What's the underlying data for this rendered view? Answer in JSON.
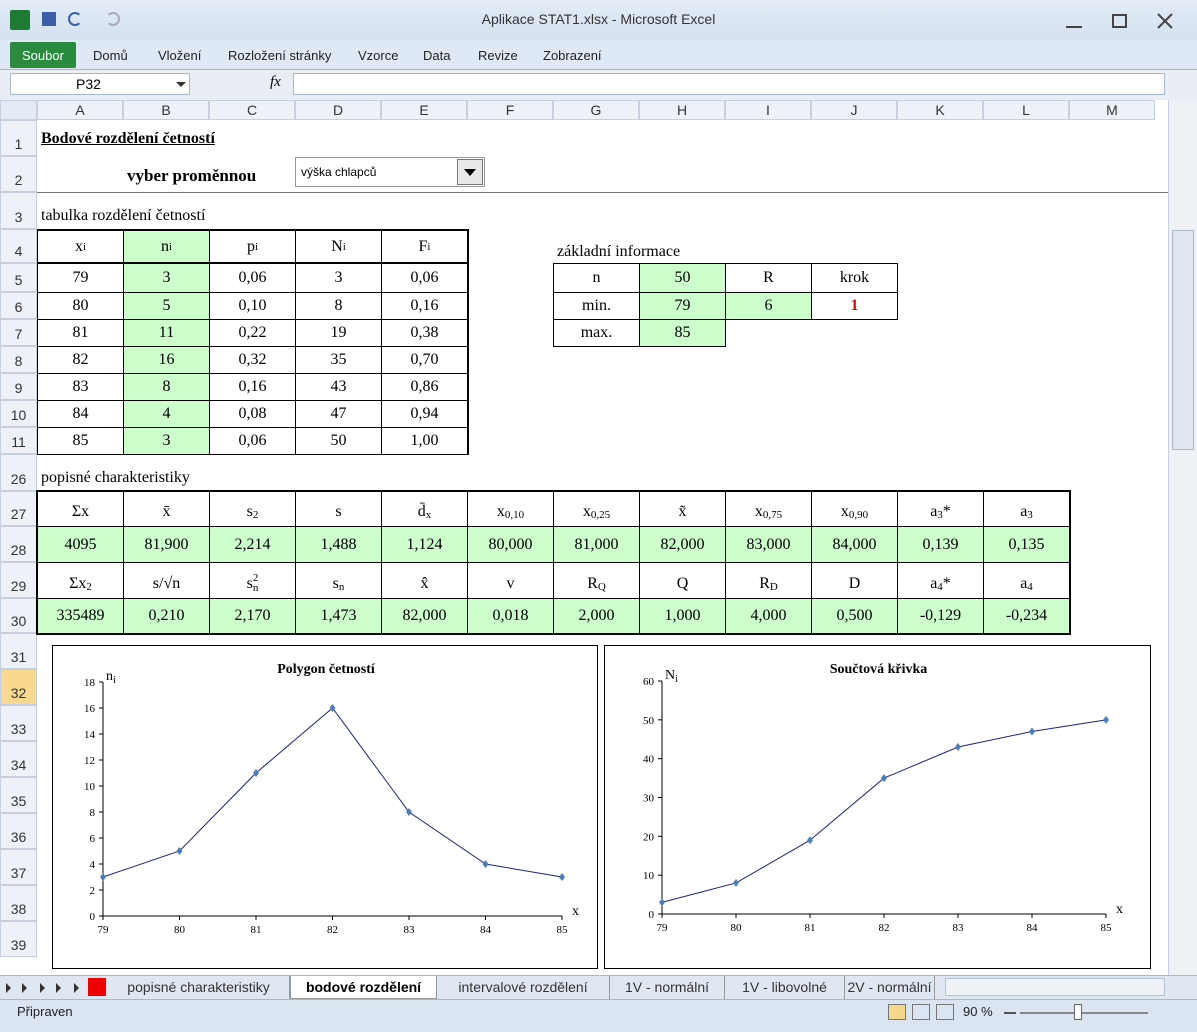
{
  "window": {
    "title": "Aplikace STAT1.xlsx - Microsoft Excel"
  },
  "ribbon": {
    "tabs": [
      "Soubor",
      "Domů",
      "Vložení",
      "Rozložení stránky",
      "Vzorce",
      "Data",
      "Revize",
      "Zobrazení"
    ]
  },
  "formula_bar": {
    "name_box": "P32",
    "fx": "fx"
  },
  "columns": [
    "A",
    "B",
    "C",
    "D",
    "E",
    "F",
    "G",
    "H",
    "I",
    "J",
    "K",
    "L",
    "M"
  ],
  "rows": [
    "1",
    "2",
    "3",
    "4",
    "5",
    "6",
    "7",
    "8",
    "9",
    "10",
    "11",
    "26",
    "27",
    "28",
    "29",
    "30",
    "31",
    "32",
    "33",
    "34",
    "35",
    "36",
    "37",
    "38",
    "39"
  ],
  "sheet": {
    "title": "Bodové rozdělení četností",
    "selector_label": "vyber proměnnou",
    "selector_value": "výška chlapců",
    "freq_table": {
      "caption": "tabulka rozdělení četností",
      "header": [
        {
          "base": "x",
          "sub": "i"
        },
        {
          "base": "n",
          "sub": "i"
        },
        {
          "base": "p",
          "sub": "i"
        },
        {
          "base": "N",
          "sub": "i"
        },
        {
          "base": "F",
          "sub": "i"
        }
      ],
      "rows": [
        [
          "79",
          "3",
          "0,06",
          "3",
          "0,06"
        ],
        [
          "80",
          "5",
          "0,10",
          "8",
          "0,16"
        ],
        [
          "81",
          "11",
          "0,22",
          "19",
          "0,38"
        ],
        [
          "82",
          "16",
          "0,32",
          "35",
          "0,70"
        ],
        [
          "83",
          "8",
          "0,16",
          "43",
          "0,86"
        ],
        [
          "84",
          "4",
          "0,08",
          "47",
          "0,94"
        ],
        [
          "85",
          "3",
          "0,06",
          "50",
          "1,00"
        ]
      ]
    },
    "info": {
      "caption": "základní informace",
      "rows": [
        [
          "n",
          "50",
          "R",
          "krok"
        ],
        [
          "min.",
          "79",
          "6",
          "1"
        ],
        [
          "max.",
          "85"
        ]
      ]
    },
    "stats": {
      "caption": "popisné charakteristiky",
      "header1": [
        {
          "base": "Σx"
        },
        {
          "base": "x̄"
        },
        {
          "base": "s",
          "sup": "2"
        },
        {
          "base": "s"
        },
        {
          "base": "d̄",
          "sub": "x"
        },
        {
          "base": "x",
          "sub": "0,10"
        },
        {
          "base": "x",
          "sub": "0,25"
        },
        {
          "base": "x̃"
        },
        {
          "base": "x",
          "sub": "0,75"
        },
        {
          "base": "x",
          "sub": "0,90"
        },
        {
          "base": "a",
          "sub": "3",
          "tail": "*"
        },
        {
          "base": "a",
          "sub": "3"
        }
      ],
      "values1": [
        "4095",
        "81,900",
        "2,214",
        "1,488",
        "1,124",
        "80,000",
        "81,000",
        "82,000",
        "83,000",
        "84,000",
        "0,139",
        "0,135"
      ],
      "header2": [
        {
          "base": "Σx",
          "sup": "2"
        },
        {
          "base": "s/√n"
        },
        {
          "base": "s",
          "sup": "2",
          "sub": "n"
        },
        {
          "base": "s",
          "sub": "n"
        },
        {
          "base": "x̂"
        },
        {
          "base": "v"
        },
        {
          "base": "R",
          "sub": "Q"
        },
        {
          "base": "Q"
        },
        {
          "base": "R",
          "sub": "D"
        },
        {
          "base": "D"
        },
        {
          "base": "a",
          "sub": "4",
          "tail": "*"
        },
        {
          "base": "a",
          "sub": "4"
        }
      ],
      "values2": [
        "335489",
        "0,210",
        "2,170",
        "1,473",
        "82,000",
        "0,018",
        "2,000",
        "1,000",
        "4,000",
        "0,500",
        "-0,129",
        "-0,234"
      ]
    }
  },
  "chart_data": [
    {
      "type": "line",
      "title": "Polygon četností",
      "ylabel": "n",
      "ylabel_sub": "i",
      "xlabel": "x",
      "x": [
        79,
        80,
        81,
        82,
        83,
        84,
        85
      ],
      "values": [
        3,
        5,
        11,
        16,
        8,
        4,
        3
      ],
      "color": "#1a237e",
      "marker_color": "#4a7ebb",
      "xlim": [
        79,
        85
      ],
      "xticks": [
        79,
        80,
        81,
        82,
        83,
        84,
        85
      ],
      "ylim": [
        0,
        18
      ],
      "yticks": [
        0,
        2,
        4,
        6,
        8,
        10,
        12,
        14,
        16,
        18
      ]
    },
    {
      "type": "line",
      "title": "Součtová křivka",
      "ylabel": "N",
      "ylabel_sub": "i",
      "xlabel": "x",
      "x": [
        79,
        80,
        81,
        82,
        83,
        84,
        85
      ],
      "values": [
        3,
        8,
        19,
        35,
        43,
        47,
        50
      ],
      "color": "#1a237e",
      "marker_color": "#4a7ebb",
      "xlim": [
        79,
        85
      ],
      "xticks": [
        79,
        80,
        81,
        82,
        83,
        84,
        85
      ],
      "ylim": [
        0,
        60
      ],
      "yticks": [
        0,
        10,
        20,
        30,
        40,
        50,
        60
      ]
    }
  ],
  "sheet_tabs": [
    "popisné charakteristiky",
    "bodové rozdělení",
    "intervalové rozdělení",
    "1V - normální",
    "1V - libovolné",
    "2V - normální"
  ],
  "active_tab": 1,
  "status": {
    "text": "Připraven",
    "zoom": "90 %"
  }
}
